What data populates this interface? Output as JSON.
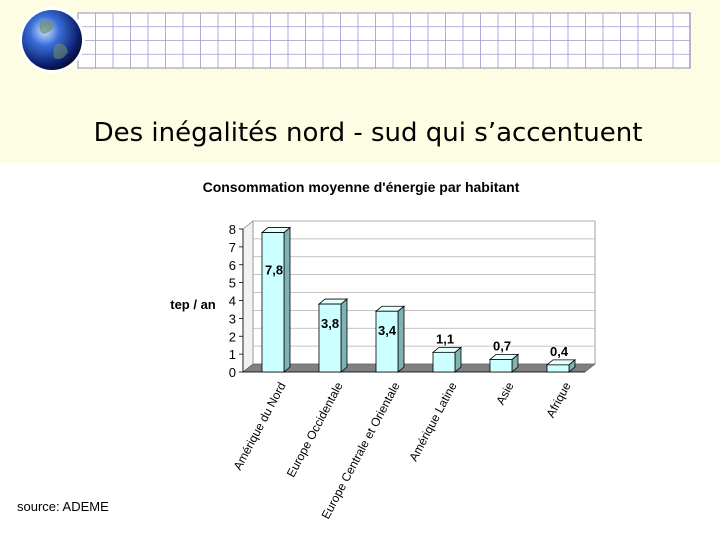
{
  "slide": {
    "title": "Des inégalités nord - sud qui s’accentuent",
    "source": "source: ADEME"
  },
  "chart_data": {
    "type": "bar",
    "title": "Consommation moyenne d'énergie par habitant",
    "ylabel": "tep / an",
    "xlabel": "",
    "categories": [
      "Amérique du Nord",
      "Europe Occidentale",
      "Europe Centrale et Orientale",
      "Amérique Latine",
      "Asie",
      "Afrique"
    ],
    "values": [
      7.8,
      3.8,
      3.4,
      1.1,
      0.7,
      0.4
    ],
    "data_labels": [
      "7,8",
      "3,8",
      "3,4",
      "1,1",
      "0,7",
      "0,4"
    ],
    "ylim": [
      0,
      8
    ],
    "yticks": [
      "0",
      "1",
      "2",
      "3",
      "4",
      "5",
      "6",
      "7",
      "8"
    ],
    "grid": true,
    "legend": "none",
    "colors": {
      "bar_fill": "#ccffff",
      "bar_side": "#7fb2b2",
      "bar_top": "#e6ffff",
      "floor": "#808080",
      "grid": "#b0b0b0"
    }
  }
}
